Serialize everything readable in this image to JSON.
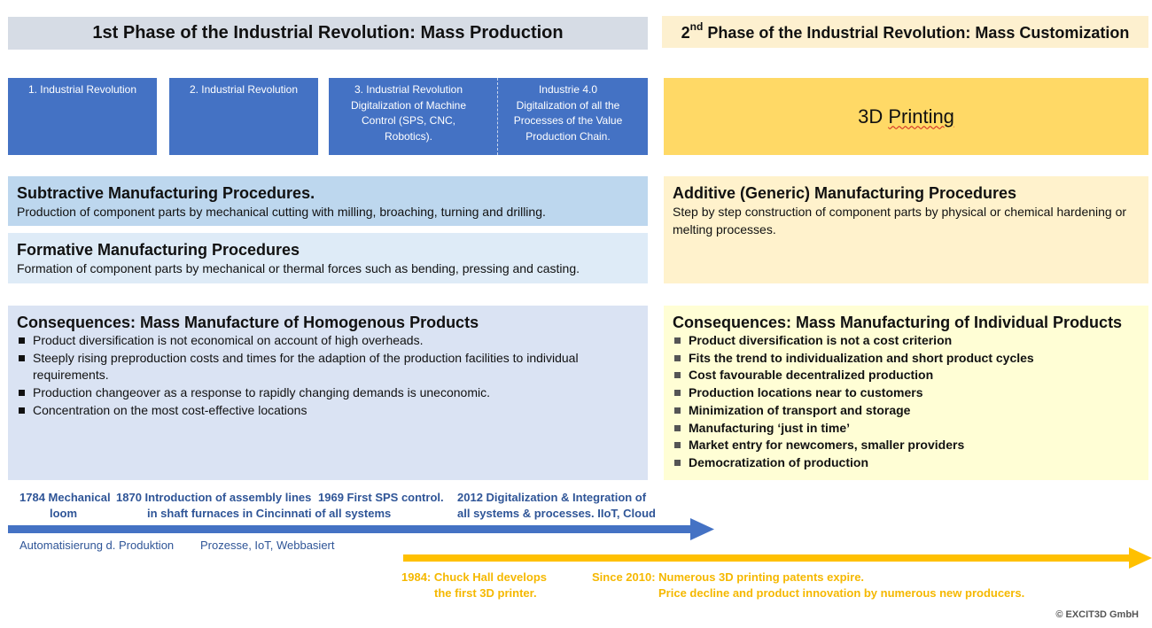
{
  "header": {
    "phase1": "1st Phase of the Industrial Revolution: Mass Production",
    "phase2_ordinal": "2",
    "phase2_sup": "nd",
    "phase2_rest": " Phase of the Industrial Revolution: Mass Customization"
  },
  "revolutions": {
    "rev1": "1. Industrial Revolution",
    "rev2": "2. Industrial Revolution",
    "rev3_line1": "3. Industrial Revolution",
    "rev3_line2": "Digitalization of Machine",
    "rev3_line3": "Control (SPS, CNC,",
    "rev3_line4": "Robotics).",
    "rev4_line1": "Industrie 4.0",
    "rev4_line2": "Digitalization of all the",
    "rev4_line3": "Processes of the Value",
    "rev4_line4": "Production Chain.",
    "printing": "3D Printing",
    "printing_prefix": "3D ",
    "printing_word": "Printing"
  },
  "procedures": {
    "subtractive_title": "Subtractive Manufacturing Procedures.",
    "subtractive_text": "Production of component parts by mechanical cutting with milling, broaching, turning and drilling.",
    "formative_title": "Formative Manufacturing Procedures",
    "formative_text": "Formation of component parts by mechanical or thermal forces such as bending, pressing and casting.",
    "additive_title": "Additive (Generic) Manufacturing Procedures",
    "additive_text": "Step by step construction of component parts by physical or chemical hardening or melting processes."
  },
  "consequences_mass": {
    "title": "Consequences: Mass Manufacture of Homogenous Products",
    "items": [
      "Product diversification is not economical on account of high overheads.",
      "Steeply rising preproduction costs and times for the adaption of the production facilities to individual requirements.",
      "Production changeover as a response to rapidly changing demands is uneconomic.",
      "Concentration on the most cost-effective locations"
    ]
  },
  "consequences_individual": {
    "title": "Consequences: Mass Manufacturing of Individual Products",
    "items": [
      "Product diversification is not a cost criterion",
      "Fits the trend to individualization and short product cycles",
      "Cost favourable decentralized production",
      "Production locations near to customers",
      "Minimization of transport and storage",
      "Manufacturing ‘just in time’",
      "Market entry for newcomers, smaller providers",
      "Democratization of production"
    ]
  },
  "timeline_blue": {
    "e1_line1": "1784 Mechanical",
    "e1_line2": "loom",
    "e2_line1": "1870 Introduction of assembly lines",
    "e2_line2": "in shaft furnaces in Cincinnati of all systems",
    "e3_line1": "1969 First SPS control.",
    "e4_line1": "2012 Digitalization & Integration of",
    "e4_line2": "all systems & processes. IIoT, Cloud",
    "label1": "Automatisierung d. Produktion",
    "label2": "Prozesse, IoT, Webbasiert",
    "color": "#4472c4"
  },
  "timeline_yellow": {
    "e1_line1": "1984: Chuck Hall develops",
    "e1_line2": "the first 3D printer.",
    "e2_line1": "Since 2010: Numerous 3D printing patents expire.",
    "e2_line2": "Price decline and product innovation by numerous new producers.",
    "color": "#ffc000"
  },
  "copyright": "© EXCIT3D GmbH"
}
